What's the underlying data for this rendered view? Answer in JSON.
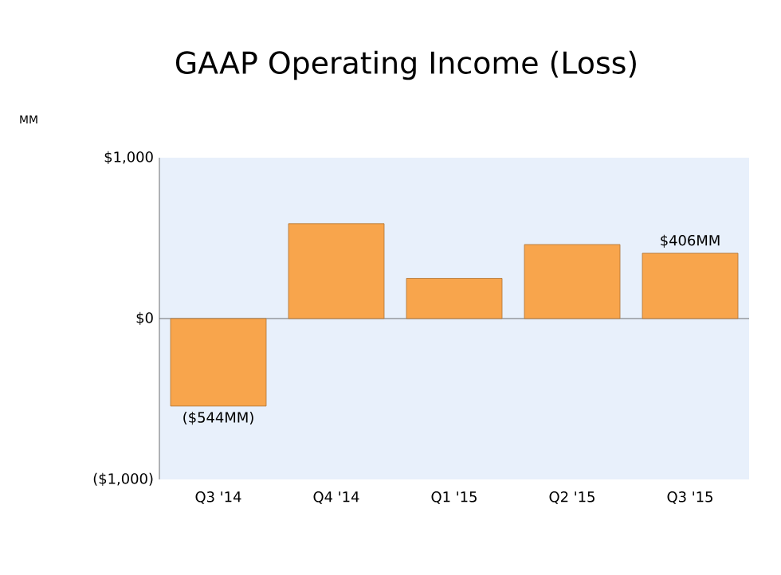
{
  "chart_data": {
    "type": "bar",
    "title": "GAAP Operating Income (Loss)",
    "annotations": [
      "MM"
    ],
    "categories": [
      "Q3 '14",
      "Q4 '14",
      "Q1 '15",
      "Q2 '15",
      "Q3 '15"
    ],
    "values": [
      -544,
      590,
      250,
      460,
      406
    ],
    "value_labels": [
      "($544MM)",
      null,
      null,
      null,
      "$406MM"
    ],
    "color": "#f8a54c",
    "ylim": [
      -1000,
      1000
    ],
    "yticks": [
      {
        "value": -1000,
        "label": "($1,000)"
      },
      {
        "value": 0,
        "label": "$0"
      },
      {
        "value": 1000,
        "label": "$1,000"
      }
    ]
  }
}
